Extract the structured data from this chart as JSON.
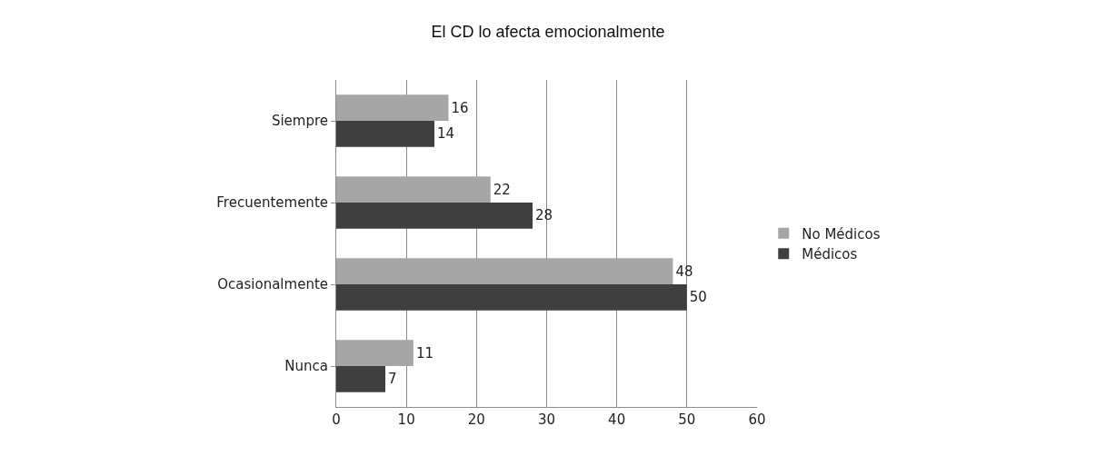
{
  "chart_data": {
    "type": "bar",
    "orientation": "horizontal",
    "title": "El CD lo afecta emocionalmente",
    "categories": [
      "Siempre",
      "Frecuentemente",
      "Ocasionalmente",
      "Nunca"
    ],
    "series": [
      {
        "name": "No Médicos",
        "color": "#a6a6a6",
        "values": [
          16,
          22,
          48,
          11
        ]
      },
      {
        "name": "Médicos",
        "color": "#3f3f3f",
        "values": [
          14,
          28,
          50,
          7
        ]
      }
    ],
    "xlim": [
      0,
      60
    ],
    "xticks": [
      0,
      10,
      20,
      30,
      40,
      50,
      60
    ],
    "grid": "x",
    "legend": "right",
    "data_labels": true
  }
}
